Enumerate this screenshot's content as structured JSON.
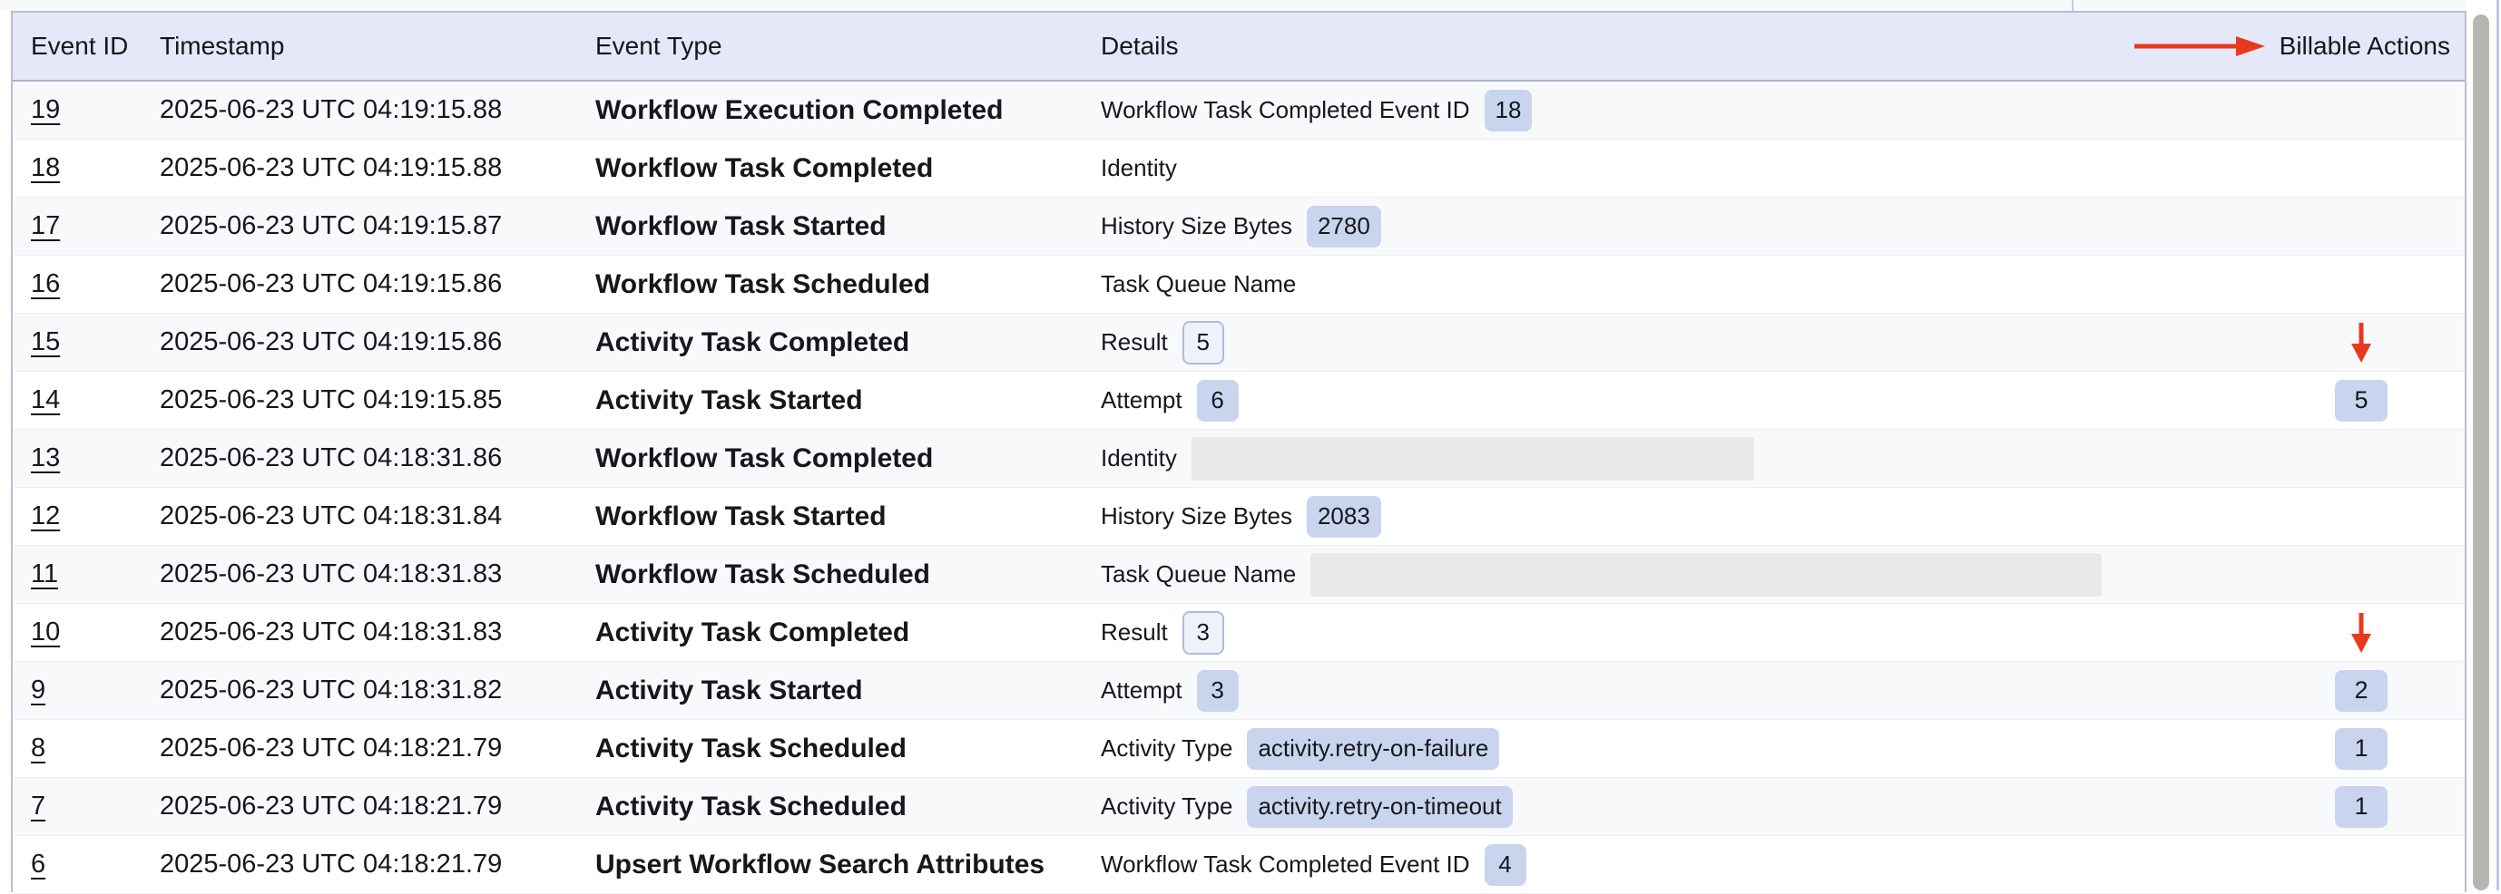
{
  "colors": {
    "header_bg": "#e4e8f8",
    "row_alt_bg": "#f8f9fb",
    "badge_bg": "#c9d5ee",
    "badge_outline_bg": "#eef2fb",
    "badge_outline_border": "#aebbdc",
    "redacted_bg": "#e9e9e9",
    "annotation_red": "#e8391f",
    "table_border": "#b8bed2",
    "header_border": "#a9b1cd",
    "row_divider": "#edeff4",
    "scrollbar_thumb": "#b5b5b2",
    "right_edge_line": "#bdc9f0",
    "top_strip_bg": "#f8f9fb",
    "text": "#16171b"
  },
  "table": {
    "columns": [
      {
        "label": "Event ID"
      },
      {
        "label": "Timestamp"
      },
      {
        "label": "Event Type"
      },
      {
        "label": "Details"
      },
      {
        "label": "Billable Actions"
      }
    ],
    "header_annotation": "red-arrow-pointing-right-at-billable-actions",
    "rows": [
      {
        "id": "19",
        "timestamp": "2025-06-23 UTC 04:19:15.88",
        "event_type": "Workflow Execution Completed",
        "detail": {
          "label": "Workflow Task Completed Event ID",
          "value": "18",
          "style": "solid"
        },
        "billable": {
          "type": "none",
          "value": ""
        }
      },
      {
        "id": "18",
        "timestamp": "2025-06-23 UTC 04:19:15.88",
        "event_type": "Workflow Task Completed",
        "detail": {
          "label": "Identity",
          "value": "",
          "style": "none"
        },
        "billable": {
          "type": "none",
          "value": ""
        }
      },
      {
        "id": "17",
        "timestamp": "2025-06-23 UTC 04:19:15.87",
        "event_type": "Workflow Task Started",
        "detail": {
          "label": "History Size Bytes",
          "value": "2780",
          "style": "solid"
        },
        "billable": {
          "type": "none",
          "value": ""
        }
      },
      {
        "id": "16",
        "timestamp": "2025-06-23 UTC 04:19:15.86",
        "event_type": "Workflow Task Scheduled",
        "detail": {
          "label": "Task Queue Name",
          "value": "",
          "style": "none"
        },
        "billable": {
          "type": "none",
          "value": ""
        }
      },
      {
        "id": "15",
        "timestamp": "2025-06-23 UTC 04:19:15.86",
        "event_type": "Activity Task Completed",
        "detail": {
          "label": "Result",
          "value": "5",
          "style": "outline"
        },
        "billable": {
          "type": "arrow",
          "value": ""
        }
      },
      {
        "id": "14",
        "timestamp": "2025-06-23 UTC 04:19:15.85",
        "event_type": "Activity Task Started",
        "detail": {
          "label": "Attempt",
          "value": "6",
          "style": "solid"
        },
        "billable": {
          "type": "badge",
          "value": "5"
        }
      },
      {
        "id": "13",
        "timestamp": "2025-06-23 UTC 04:18:31.86",
        "event_type": "Workflow Task Completed",
        "detail": {
          "label": "Identity",
          "value": "",
          "style": "redacted",
          "redacted_width": 620
        },
        "billable": {
          "type": "none",
          "value": ""
        }
      },
      {
        "id": "12",
        "timestamp": "2025-06-23 UTC 04:18:31.84",
        "event_type": "Workflow Task Started",
        "detail": {
          "label": "History Size Bytes",
          "value": "2083",
          "style": "solid"
        },
        "billable": {
          "type": "none",
          "value": ""
        }
      },
      {
        "id": "11",
        "timestamp": "2025-06-23 UTC 04:18:31.83",
        "event_type": "Workflow Task Scheduled",
        "detail": {
          "label": "Task Queue Name",
          "value": "",
          "style": "redacted",
          "redacted_width": 872
        },
        "billable": {
          "type": "none",
          "value": ""
        }
      },
      {
        "id": "10",
        "timestamp": "2025-06-23 UTC 04:18:31.83",
        "event_type": "Activity Task Completed",
        "detail": {
          "label": "Result",
          "value": "3",
          "style": "outline"
        },
        "billable": {
          "type": "arrow",
          "value": ""
        }
      },
      {
        "id": "9",
        "timestamp": "2025-06-23 UTC 04:18:31.82",
        "event_type": "Activity Task Started",
        "detail": {
          "label": "Attempt",
          "value": "3",
          "style": "solid"
        },
        "billable": {
          "type": "badge",
          "value": "2"
        }
      },
      {
        "id": "8",
        "timestamp": "2025-06-23 UTC 04:18:21.79",
        "event_type": "Activity Task Scheduled",
        "detail": {
          "label": "Activity Type",
          "value": "activity.retry-on-failure",
          "style": "solid"
        },
        "billable": {
          "type": "badge",
          "value": "1"
        }
      },
      {
        "id": "7",
        "timestamp": "2025-06-23 UTC 04:18:21.79",
        "event_type": "Activity Task Scheduled",
        "detail": {
          "label": "Activity Type",
          "value": "activity.retry-on-timeout",
          "style": "solid"
        },
        "billable": {
          "type": "badge",
          "value": "1"
        }
      },
      {
        "id": "6",
        "timestamp": "2025-06-23 UTC 04:18:21.79",
        "event_type": "Upsert Workflow Search Attributes",
        "detail": {
          "label": "Workflow Task Completed Event ID",
          "value": "4",
          "style": "solid"
        },
        "billable": {
          "type": "none",
          "value": ""
        }
      }
    ]
  }
}
